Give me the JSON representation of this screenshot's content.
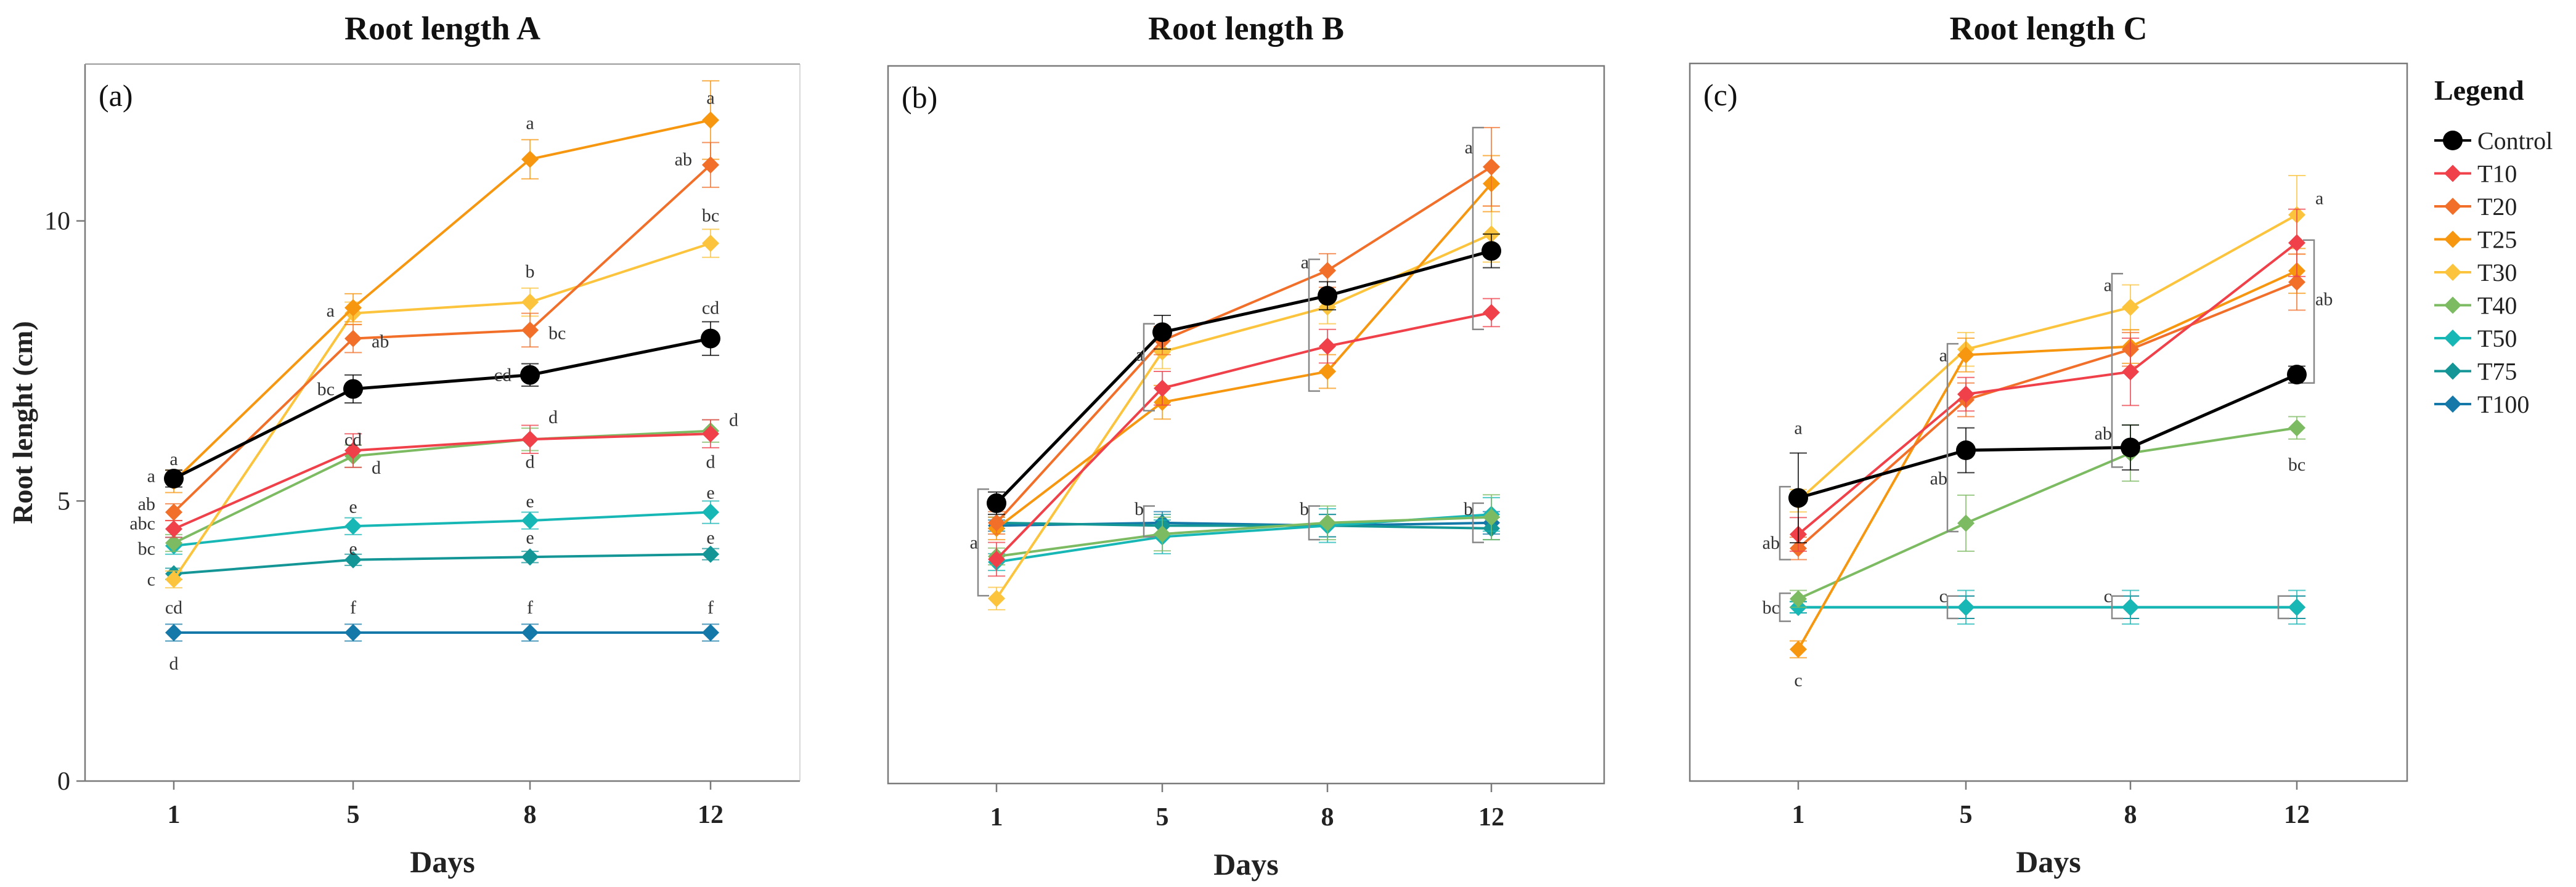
{
  "chart_data": [
    {
      "type": "line",
      "title": "Root length A",
      "panel_label": "(a)",
      "xlabel": "Days",
      "ylabel": "Root lenght (cm)",
      "x": [
        1,
        5,
        8,
        12
      ],
      "xticks": [
        "1",
        "5",
        "8",
        "12"
      ],
      "ylim": [
        0,
        12.8
      ],
      "yticks": [
        0,
        5,
        10
      ],
      "series": [
        {
          "name": "Control",
          "values": [
            5.4,
            7.0,
            7.25,
            7.9
          ],
          "errors": [
            0.15,
            0.25,
            0.2,
            0.3
          ]
        },
        {
          "name": "T10",
          "values": [
            4.5,
            5.9,
            6.1,
            6.2
          ],
          "errors": [
            0.15,
            0.3,
            0.25,
            0.25
          ]
        },
        {
          "name": "T20",
          "values": [
            4.8,
            7.9,
            8.05,
            11.0
          ],
          "errors": [
            0.15,
            0.25,
            0.3,
            0.4
          ]
        },
        {
          "name": "T25",
          "values": [
            5.35,
            8.45,
            11.1,
            11.8
          ],
          "errors": [
            0.2,
            0.25,
            0.35,
            0.7
          ]
        },
        {
          "name": "T30",
          "values": [
            3.6,
            8.35,
            8.55,
            9.6
          ],
          "errors": [
            0.15,
            0.2,
            0.25,
            0.25
          ]
        },
        {
          "name": "T40",
          "values": [
            4.25,
            5.8,
            6.1,
            6.25
          ],
          "errors": [
            0.15,
            0.2,
            0.2,
            0.2
          ]
        },
        {
          "name": "T50",
          "values": [
            4.2,
            4.55,
            4.65,
            4.8
          ],
          "errors": [
            0.15,
            0.15,
            0.15,
            0.2
          ]
        },
        {
          "name": "T75",
          "values": [
            3.7,
            3.95,
            4.0,
            4.05
          ],
          "errors": [
            0.1,
            0.1,
            0.1,
            0.1
          ]
        },
        {
          "name": "T100",
          "values": [
            2.65,
            2.65,
            2.65,
            2.65
          ],
          "errors": [
            0.15,
            0.15,
            0.15,
            0.15
          ]
        }
      ],
      "annotations": [
        {
          "text": "a",
          "x": 1,
          "y": 5.75
        },
        {
          "text": "a",
          "x": 1,
          "y": 5.45,
          "align": "left"
        },
        {
          "text": "ab",
          "x": 1,
          "y": 4.95,
          "align": "left"
        },
        {
          "text": "abc",
          "x": 1,
          "y": 4.6,
          "align": "left"
        },
        {
          "text": "bc",
          "x": 1,
          "y": 4.15,
          "align": "left"
        },
        {
          "text": "c",
          "x": 1,
          "y": 3.6,
          "align": "left"
        },
        {
          "text": "cd",
          "x": 1,
          "y": 3.1
        },
        {
          "text": "d",
          "x": 1,
          "y": 2.1
        },
        {
          "text": "a",
          "x": 5,
          "y": 8.4,
          "align": "left"
        },
        {
          "text": "ab",
          "x": 5,
          "y": 7.85,
          "align": "right"
        },
        {
          "text": "bc",
          "x": 5,
          "y": 7.0,
          "align": "left"
        },
        {
          "text": "cd",
          "x": 5,
          "y": 6.1
        },
        {
          "text": "d",
          "x": 5,
          "y": 5.6,
          "align": "right"
        },
        {
          "text": "e",
          "x": 5,
          "y": 4.9
        },
        {
          "text": "e",
          "x": 5,
          "y": 4.15
        },
        {
          "text": "f",
          "x": 5,
          "y": 3.1
        },
        {
          "text": "a",
          "x": 8,
          "y": 11.75
        },
        {
          "text": "b",
          "x": 8,
          "y": 9.1
        },
        {
          "text": "bc",
          "x": 8,
          "y": 8.0,
          "align": "right"
        },
        {
          "text": "cd",
          "x": 8,
          "y": 7.25,
          "align": "left"
        },
        {
          "text": "d",
          "x": 8,
          "y": 6.5,
          "align": "right"
        },
        {
          "text": "d",
          "x": 8,
          "y": 5.7
        },
        {
          "text": "e",
          "x": 8,
          "y": 5.0
        },
        {
          "text": "e",
          "x": 8,
          "y": 4.35
        },
        {
          "text": "f",
          "x": 8,
          "y": 3.1
        },
        {
          "text": "a",
          "x": 12,
          "y": 12.2
        },
        {
          "text": "ab",
          "x": 12,
          "y": 11.1,
          "align": "left"
        },
        {
          "text": "bc",
          "x": 12,
          "y": 10.1
        },
        {
          "text": "cd",
          "x": 12,
          "y": 8.45
        },
        {
          "text": "d",
          "x": 12,
          "y": 6.45,
          "align": "right"
        },
        {
          "text": "d",
          "x": 12,
          "y": 5.7
        },
        {
          "text": "e",
          "x": 12,
          "y": 5.15
        },
        {
          "text": "e",
          "x": 12,
          "y": 4.35
        },
        {
          "text": "f",
          "x": 12,
          "y": 3.1
        }
      ]
    },
    {
      "type": "line",
      "title": "Root length B",
      "panel_label": "(b)",
      "xlabel": "Days",
      "ylabel": "",
      "x": [
        1,
        5,
        8,
        12
      ],
      "xticks": [
        "1",
        "5",
        "8",
        "12"
      ],
      "ylim": [
        0,
        12.8
      ],
      "yticks": [],
      "series": [
        {
          "name": "Control",
          "values": [
            5.0,
            8.05,
            8.7,
            9.5
          ],
          "errors": [
            0.2,
            0.3,
            0.25,
            0.3
          ]
        },
        {
          "name": "T10",
          "values": [
            4.0,
            7.05,
            7.8,
            8.4
          ],
          "errors": [
            0.3,
            0.3,
            0.3,
            0.25
          ]
        },
        {
          "name": "T20",
          "values": [
            4.65,
            7.9,
            9.15,
            11.0
          ],
          "errors": [
            0.2,
            0.25,
            0.3,
            0.7
          ]
        },
        {
          "name": "T25",
          "values": [
            4.55,
            6.8,
            7.35,
            10.7
          ],
          "errors": [
            0.2,
            0.3,
            0.3,
            0.5
          ]
        },
        {
          "name": "T30",
          "values": [
            3.3,
            7.7,
            8.5,
            9.8
          ],
          "errors": [
            0.2,
            0.3,
            0.3,
            0.5
          ]
        },
        {
          "name": "T40",
          "values": [
            4.05,
            4.45,
            4.65,
            4.75
          ],
          "errors": [
            0.15,
            0.3,
            0.3,
            0.4
          ]
        },
        {
          "name": "T50",
          "values": [
            3.95,
            4.4,
            4.6,
            4.8
          ],
          "errors": [
            0.15,
            0.3,
            0.3,
            0.3
          ]
        },
        {
          "name": "T75",
          "values": [
            4.65,
            4.6,
            4.6,
            4.55
          ],
          "errors": [
            0.1,
            0.2,
            0.2,
            0.2
          ]
        },
        {
          "name": "T100",
          "values": [
            4.6,
            4.65,
            4.6,
            4.65
          ],
          "errors": [
            0.1,
            0.2,
            0.2,
            0.2
          ]
        }
      ],
      "annotations": [
        {
          "text": "a",
          "x": 1,
          "y": 4.3,
          "align": "left"
        },
        {
          "text": "a",
          "x": 5,
          "y": 7.65,
          "align": "left"
        },
        {
          "text": "b",
          "x": 5,
          "y": 4.9,
          "align": "left"
        },
        {
          "text": "a",
          "x": 8,
          "y": 9.3,
          "align": "left"
        },
        {
          "text": "b",
          "x": 8,
          "y": 4.9,
          "align": "left"
        },
        {
          "text": "a",
          "x": 12,
          "y": 11.35,
          "align": "left"
        },
        {
          "text": "b",
          "x": 12,
          "y": 4.9,
          "align": "left"
        }
      ],
      "brackets": [
        {
          "x": 1,
          "y0": 3.35,
          "y1": 5.25
        },
        {
          "x": 5,
          "y0": 6.65,
          "y1": 8.2
        },
        {
          "x": 5,
          "y0": 4.4,
          "y1": 4.95
        },
        {
          "x": 8,
          "y0": 7.0,
          "y1": 9.35
        },
        {
          "x": 8,
          "y0": 4.35,
          "y1": 4.95
        },
        {
          "x": 12,
          "y0": 8.1,
          "y1": 11.7
        },
        {
          "x": 12,
          "y0": 4.3,
          "y1": 5.0
        }
      ]
    },
    {
      "type": "line",
      "title": "Root length C",
      "panel_label": "(c)",
      "xlabel": "Days",
      "ylabel": "",
      "x": [
        1,
        5,
        8,
        12
      ],
      "xticks": [
        "1",
        "5",
        "8",
        "12"
      ],
      "ylim": [
        0,
        12.8
      ],
      "yticks": [],
      "series": [
        {
          "name": "Control",
          "values": [
            5.05,
            5.9,
            5.95,
            7.25
          ],
          "errors": [
            0.8,
            0.4,
            0.4,
            0.15
          ]
        },
        {
          "name": "T10",
          "values": [
            4.4,
            6.9,
            7.3,
            9.6
          ],
          "errors": [
            0.3,
            0.3,
            0.6,
            0.6
          ]
        },
        {
          "name": "T20",
          "values": [
            4.15,
            6.8,
            7.7,
            8.9
          ],
          "errors": [
            0.2,
            0.3,
            0.3,
            0.5
          ]
        },
        {
          "name": "T25",
          "values": [
            2.35,
            7.6,
            7.75,
            9.1
          ],
          "errors": [
            0.15,
            0.3,
            0.3,
            0.4
          ]
        },
        {
          "name": "T30",
          "values": [
            5.0,
            7.7,
            8.45,
            10.1
          ],
          "errors": [
            0.2,
            0.3,
            0.4,
            0.7
          ]
        },
        {
          "name": "T40",
          "values": [
            3.25,
            4.6,
            5.85,
            6.3
          ],
          "errors": [
            0.15,
            0.5,
            0.5,
            0.2
          ]
        },
        {
          "name": "T50",
          "values": [
            3.1,
            3.1,
            3.1,
            3.1
          ],
          "errors": [
            0.1,
            0.3,
            0.3,
            0.3
          ]
        },
        {
          "name": "T75",
          "values": [
            3.1,
            3.1,
            3.1,
            3.1
          ],
          "errors": [
            0.1,
            0.2,
            0.2,
            0.2
          ]
        },
        {
          "name": "T100",
          "values": [
            3.1,
            3.1,
            3.1,
            3.1
          ],
          "errors": [
            0.1,
            0.2,
            0.2,
            0.2
          ]
        }
      ],
      "annotations": [
        {
          "text": "a",
          "x": 1,
          "y": 6.3
        },
        {
          "text": "ab",
          "x": 1,
          "y": 4.25,
          "align": "left"
        },
        {
          "text": "bc",
          "x": 1,
          "y": 3.1,
          "align": "left"
        },
        {
          "text": "c",
          "x": 1,
          "y": 1.8
        },
        {
          "text": "a",
          "x": 5,
          "y": 7.6,
          "align": "left"
        },
        {
          "text": "ab",
          "x": 5,
          "y": 5.4,
          "align": "left"
        },
        {
          "text": "c",
          "x": 5,
          "y": 3.3,
          "align": "left"
        },
        {
          "text": "a",
          "x": 8,
          "y": 8.85,
          "align": "left"
        },
        {
          "text": "ab",
          "x": 8,
          "y": 6.2,
          "align": "left"
        },
        {
          "text": "c",
          "x": 8,
          "y": 3.3,
          "align": "left"
        },
        {
          "text": "a",
          "x": 12,
          "y": 10.4,
          "align": "right"
        },
        {
          "text": "ab",
          "x": 12,
          "y": 8.6,
          "align": "right"
        },
        {
          "text": "bc",
          "x": 12,
          "y": 5.65
        }
      ],
      "brackets": [
        {
          "x": 1,
          "y0": 3.95,
          "y1": 5.25
        },
        {
          "x": 1,
          "y0": 2.85,
          "y1": 3.35
        },
        {
          "x": 5,
          "y0": 4.45,
          "y1": 7.8
        },
        {
          "x": 5,
          "y0": 2.9,
          "y1": 3.3
        },
        {
          "x": 8,
          "y0": 5.6,
          "y1": 9.05
        },
        {
          "x": 8,
          "y0": 2.9,
          "y1": 3.3
        },
        {
          "x": 12,
          "y0": 7.1,
          "y1": 9.65,
          "side": "right"
        },
        {
          "x": 12,
          "y0": 2.9,
          "y1": 3.3
        }
      ]
    }
  ],
  "legend": {
    "title": "Legend",
    "items": [
      {
        "name": "Control",
        "color": "#000000",
        "marker": "circle"
      },
      {
        "name": "T10",
        "color": "#f0404a",
        "marker": "diamond"
      },
      {
        "name": "T20",
        "color": "#f26f2a",
        "marker": "diamond"
      },
      {
        "name": "T25",
        "color": "#f7960f",
        "marker": "diamond"
      },
      {
        "name": "T30",
        "color": "#fbc43c",
        "marker": "diamond"
      },
      {
        "name": "T40",
        "color": "#7dbb62",
        "marker": "diamond"
      },
      {
        "name": "T50",
        "color": "#17b7b6",
        "marker": "diamond"
      },
      {
        "name": "T75",
        "color": "#149596",
        "marker": "diamond"
      },
      {
        "name": "T100",
        "color": "#1479a8",
        "marker": "diamond"
      }
    ]
  }
}
